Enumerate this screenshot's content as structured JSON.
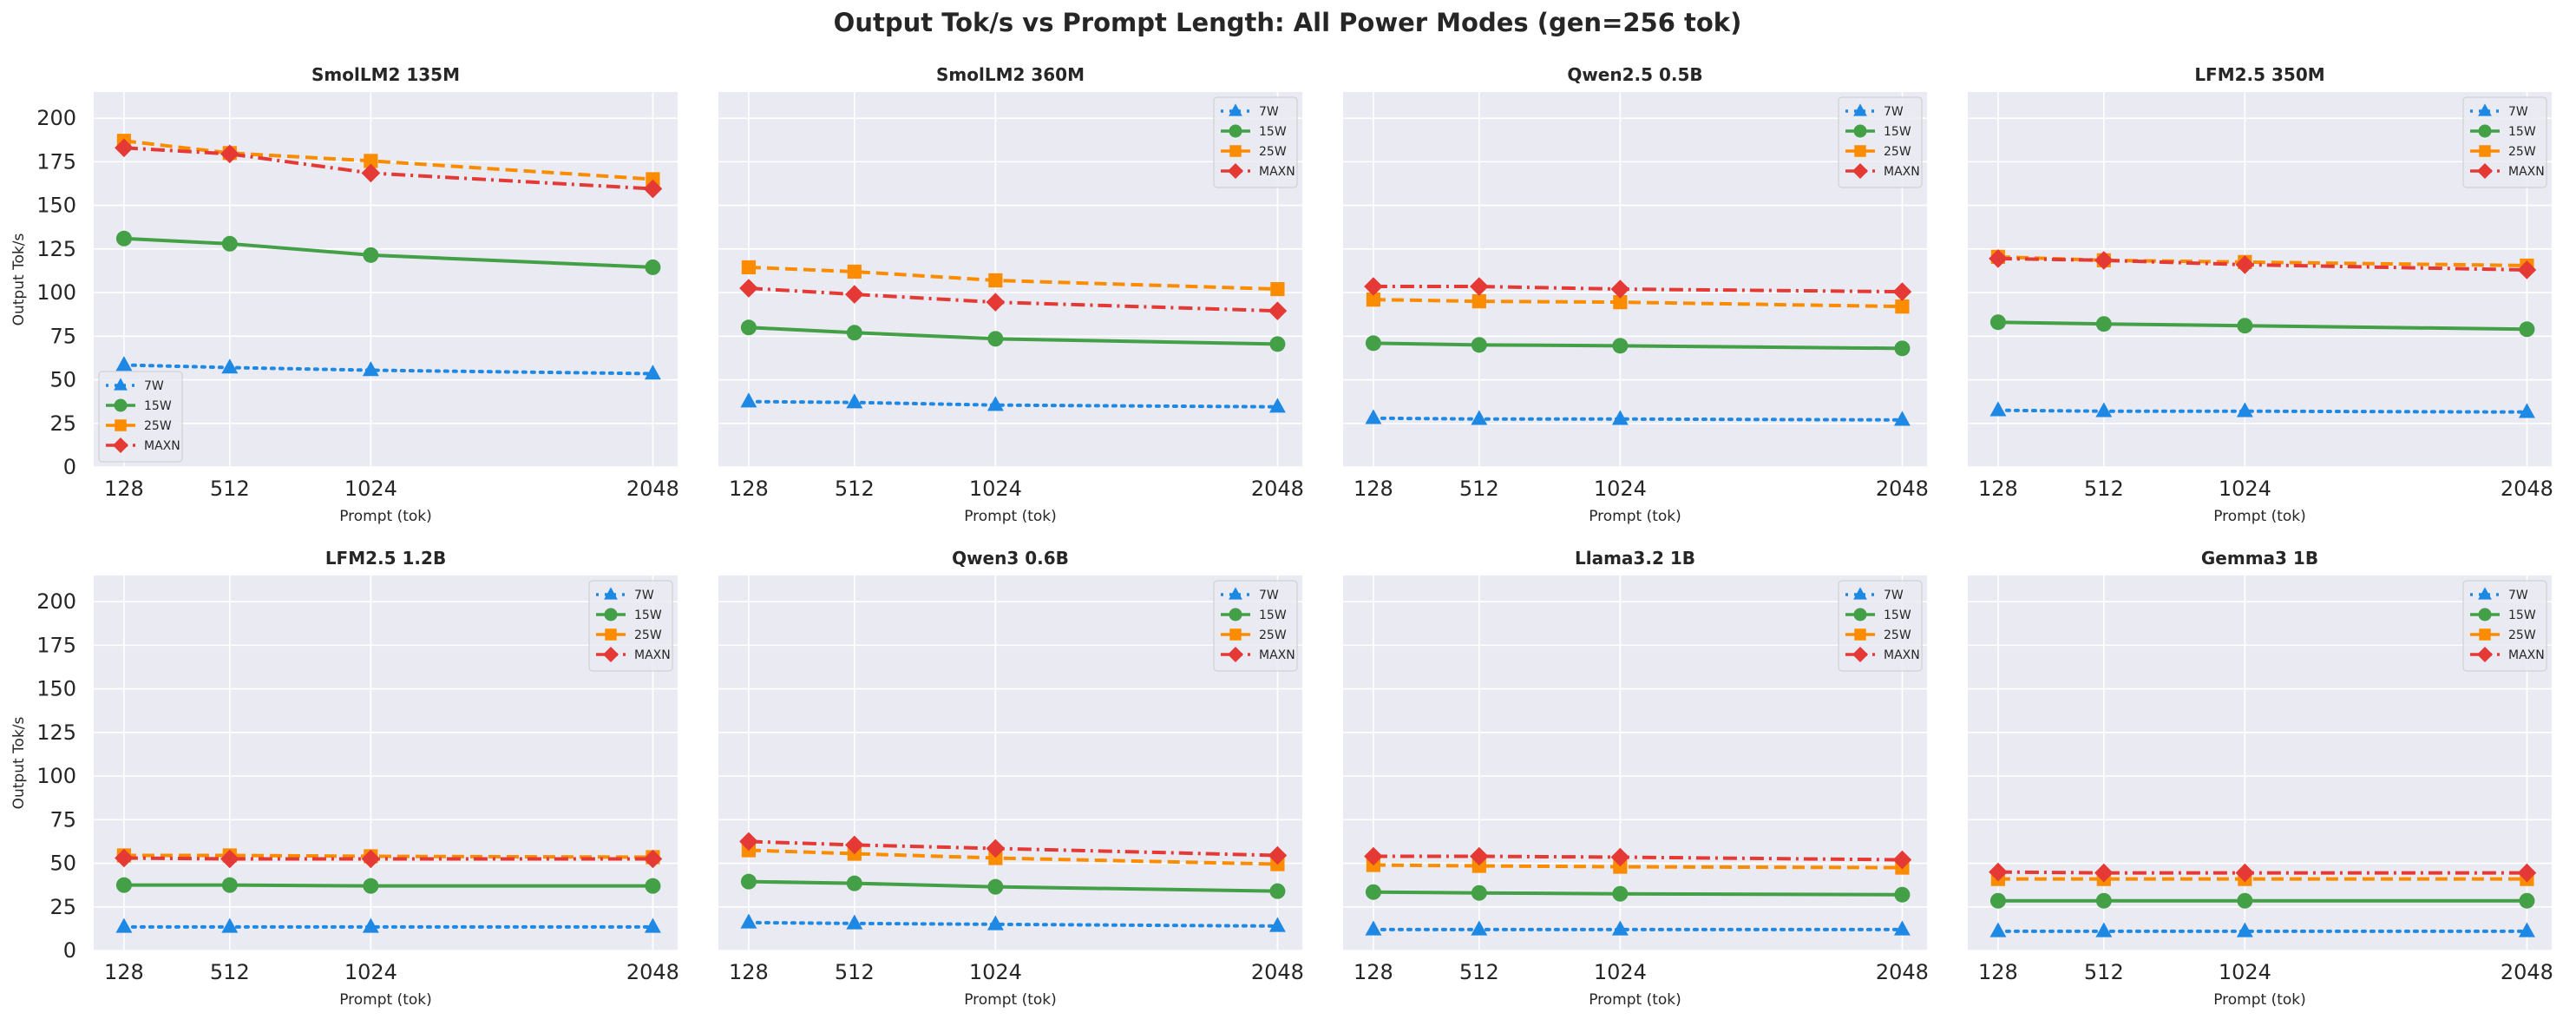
{
  "title": "Output Tok/s vs Prompt Length: All Power Modes (gen=256 tok)",
  "shared": {
    "xlabel": "Prompt (tok)",
    "ylabel": "Output Tok/s",
    "x": [
      128,
      512,
      1024,
      2048
    ],
    "x_ticks": [
      "128",
      "512",
      "1024",
      "2048"
    ],
    "y_ticks": [
      "0",
      "25",
      "50",
      "75",
      "100",
      "125",
      "150",
      "175",
      "200"
    ],
    "ylim": [
      0,
      215
    ],
    "grid": true,
    "series_styles": [
      {
        "name": "7W",
        "color": "#1e88e5",
        "marker": "triangle",
        "dash": "dotted"
      },
      {
        "name": "15W",
        "color": "#43a047",
        "marker": "circle",
        "dash": "solid"
      },
      {
        "name": "25W",
        "color": "#fb8c00",
        "marker": "square",
        "dash": "dashed"
      },
      {
        "name": "MAXN",
        "color": "#e53935",
        "marker": "diamond",
        "dash": "dashdot"
      }
    ]
  },
  "chart_data": [
    {
      "type": "line",
      "title": "SmolLM2 135M",
      "legend": "lower-left",
      "series": [
        {
          "name": "7W",
          "values": [
            58.5,
            57,
            55.5,
            53.5
          ]
        },
        {
          "name": "15W",
          "values": [
            131,
            128,
            121.5,
            114.5
          ]
        },
        {
          "name": "25W",
          "values": [
            187,
            180,
            175.5,
            165
          ]
        },
        {
          "name": "MAXN",
          "values": [
            183,
            179.5,
            168.5,
            159.5
          ]
        }
      ]
    },
    {
      "type": "line",
      "title": "SmolLM2 360M",
      "legend": "upper-right",
      "series": [
        {
          "name": "7W",
          "values": [
            37.5,
            37,
            35.5,
            34.5
          ]
        },
        {
          "name": "15W",
          "values": [
            80,
            77,
            73.5,
            70.5
          ]
        },
        {
          "name": "25W",
          "values": [
            114.5,
            112,
            107,
            102
          ]
        },
        {
          "name": "MAXN",
          "values": [
            102.5,
            99,
            94.5,
            89.5
          ]
        }
      ]
    },
    {
      "type": "line",
      "title": "Qwen2.5 0.5B",
      "legend": "upper-right",
      "series": [
        {
          "name": "7W",
          "values": [
            28,
            27.5,
            27.5,
            27
          ]
        },
        {
          "name": "15W",
          "values": [
            71,
            70,
            69.5,
            68
          ]
        },
        {
          "name": "25W",
          "values": [
            96,
            95,
            94.5,
            92
          ]
        },
        {
          "name": "MAXN",
          "values": [
            103.5,
            103.5,
            102,
            100.5
          ]
        }
      ]
    },
    {
      "type": "line",
      "title": "LFM2.5 350M",
      "legend": "upper-right",
      "series": [
        {
          "name": "7W",
          "values": [
            32.5,
            32,
            32,
            31.5
          ]
        },
        {
          "name": "15W",
          "values": [
            83,
            82,
            81,
            79
          ]
        },
        {
          "name": "25W",
          "values": [
            120.5,
            118.5,
            117.5,
            115.5
          ]
        },
        {
          "name": "MAXN",
          "values": [
            119.5,
            118.5,
            116,
            113
          ]
        }
      ]
    },
    {
      "type": "line",
      "title": "LFM2.5 1.2B",
      "legend": "upper-right",
      "series": [
        {
          "name": "7W",
          "values": [
            13.5,
            13.5,
            13.5,
            13.5
          ]
        },
        {
          "name": "15W",
          "values": [
            37.5,
            37.5,
            37,
            37
          ]
        },
        {
          "name": "25W",
          "values": [
            54.5,
            54.5,
            54,
            53.5
          ]
        },
        {
          "name": "MAXN",
          "values": [
            53,
            52.5,
            52.5,
            52.5
          ]
        }
      ]
    },
    {
      "type": "line",
      "title": "Qwen3 0.6B",
      "legend": "upper-right",
      "series": [
        {
          "name": "7W",
          "values": [
            16,
            15.5,
            15,
            14
          ]
        },
        {
          "name": "15W",
          "values": [
            39.5,
            38.5,
            36.5,
            34
          ]
        },
        {
          "name": "25W",
          "values": [
            57.5,
            55.5,
            53,
            49.5
          ]
        },
        {
          "name": "MAXN",
          "values": [
            62.5,
            60.5,
            58.5,
            54.5
          ]
        }
      ]
    },
    {
      "type": "line",
      "title": "Llama3.2 1B",
      "legend": "upper-right",
      "series": [
        {
          "name": "7W",
          "values": [
            12,
            12,
            12,
            12
          ]
        },
        {
          "name": "15W",
          "values": [
            33.5,
            33,
            32.5,
            32
          ]
        },
        {
          "name": "25W",
          "values": [
            49,
            48.5,
            48,
            47.5
          ]
        },
        {
          "name": "MAXN",
          "values": [
            54,
            54,
            53.5,
            52
          ]
        }
      ]
    },
    {
      "type": "line",
      "title": "Gemma3 1B",
      "legend": "upper-right",
      "series": [
        {
          "name": "7W",
          "values": [
            11,
            11,
            11,
            11
          ]
        },
        {
          "name": "15W",
          "values": [
            28.5,
            28.5,
            28.5,
            28.5
          ]
        },
        {
          "name": "25W",
          "values": [
            41,
            41,
            41,
            41
          ]
        },
        {
          "name": "MAXN",
          "values": [
            45,
            44.5,
            44.5,
            44.5
          ]
        }
      ]
    }
  ]
}
